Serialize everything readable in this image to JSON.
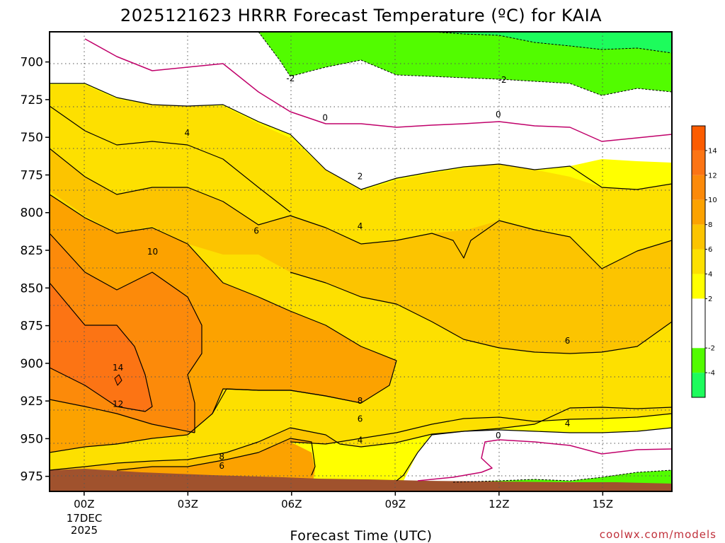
{
  "chart_data": {
    "type": "heatmap",
    "title": "2025121623 HRRR Forecast Temperature (ºC) for KAIA",
    "xlabel": "Forecast Time (UTC)",
    "ylabel": "",
    "x_ticks": [
      "00Z",
      "03Z",
      "06Z",
      "09Z",
      "12Z",
      "15Z"
    ],
    "x_hours": [
      0,
      3,
      6,
      9,
      12,
      15
    ],
    "x_range_hours": [
      -1,
      17
    ],
    "date_label": [
      "17DEC",
      "2025"
    ],
    "y_ticks": [
      700,
      725,
      750,
      775,
      800,
      825,
      850,
      875,
      900,
      925,
      950,
      975
    ],
    "y_range_hpa": [
      680,
      985
    ],
    "y_inverted": true,
    "grid": true,
    "color_bar": {
      "ticks": [
        -4,
        -2,
        2,
        4,
        6,
        8,
        10,
        12,
        14
      ],
      "bands": [
        {
          "from": -6,
          "to": -4,
          "color": "#1dfc5c"
        },
        {
          "from": -4,
          "to": -2,
          "color": "#52fc00"
        },
        {
          "from": -2,
          "to": 2,
          "color": "#ffffff"
        },
        {
          "from": 2,
          "to": 4,
          "color": "#ffff00"
        },
        {
          "from": 4,
          "to": 6,
          "color": "#fde000"
        },
        {
          "from": 6,
          "to": 8,
          "color": "#fcc400"
        },
        {
          "from": 8,
          "to": 10,
          "color": "#fca200"
        },
        {
          "from": 10,
          "to": 12,
          "color": "#fc8a0a"
        },
        {
          "from": 12,
          "to": 14,
          "color": "#fc7414"
        },
        {
          "from": 14,
          "to": 16,
          "color": "#fc5c00"
        }
      ]
    },
    "ground_color": "#a0522d",
    "contour_labels": [
      {
        "text": "-2",
        "hour": 5.97,
        "hpa": 711
      },
      {
        "text": "-2",
        "hour": 12.1,
        "hpa": 712
      },
      {
        "text": "0",
        "hour": 6.97,
        "hpa": 737
      },
      {
        "text": "0",
        "hour": 11.98,
        "hpa": 735
      },
      {
        "text": "0",
        "hour": 11.98,
        "hpa": 948
      },
      {
        "text": "2",
        "hour": 7.98,
        "hpa": 776
      },
      {
        "text": "4",
        "hour": 2.98,
        "hpa": 747
      },
      {
        "text": "4",
        "hour": 7.98,
        "hpa": 809
      },
      {
        "text": "4",
        "hour": 13.98,
        "hpa": 940
      },
      {
        "text": "4",
        "hour": 7.98,
        "hpa": 951
      },
      {
        "text": "6",
        "hour": 4.98,
        "hpa": 812
      },
      {
        "text": "6",
        "hour": 13.98,
        "hpa": 885
      },
      {
        "text": "6",
        "hour": 7.98,
        "hpa": 937
      },
      {
        "text": "6",
        "hour": 3.98,
        "hpa": 968
      },
      {
        "text": "8",
        "hour": 7.98,
        "hpa": 925
      },
      {
        "text": "8",
        "hour": 3.98,
        "hpa": 962
      },
      {
        "text": "10",
        "hour": 1.98,
        "hpa": 826
      },
      {
        "text": "12",
        "hour": 0.98,
        "hpa": 927
      },
      {
        "text": "14",
        "hour": 0.98,
        "hpa": 903
      }
    ]
  },
  "footer": {
    "credit": "coolwx.com/models"
  }
}
